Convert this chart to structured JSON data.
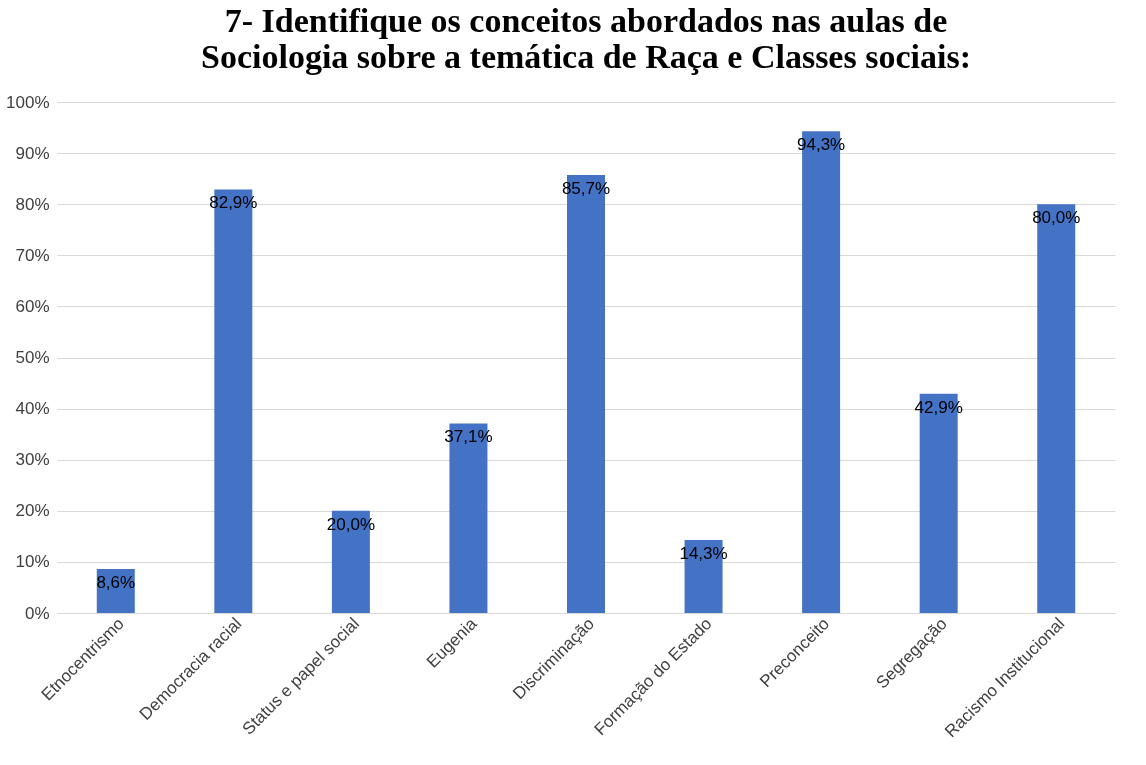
{
  "chart_data": {
    "type": "bar",
    "title": "7- Identifique os conceitos abordados nas aulas de\nSociologia sobre a temática de Raça e Classes sociais:",
    "categories": [
      "Etnocentrismo",
      "Democracia racial",
      "Status e papel social",
      "Eugenia",
      "Discriminação",
      "Formação do Estado",
      "Preconceito",
      "Segregação",
      "Racismo Institucional"
    ],
    "values": [
      8.6,
      82.9,
      20.0,
      37.1,
      85.7,
      14.3,
      94.3,
      42.9,
      80.0
    ],
    "value_labels": [
      "8,6%",
      "82,9%",
      "20,0%",
      "37,1%",
      "85,7%",
      "14,3%",
      "94,3%",
      "42,9%",
      "80,0%"
    ],
    "color": "#4472c4",
    "ylim": [
      0,
      100
    ],
    "yticks": [
      {
        "value": 0,
        "label": "0%"
      },
      {
        "value": 10,
        "label": "10%"
      },
      {
        "value": 20,
        "label": "20%"
      },
      {
        "value": 30,
        "label": "30%"
      },
      {
        "value": 40,
        "label": "40%"
      },
      {
        "value": 50,
        "label": "50%"
      },
      {
        "value": 60,
        "label": "60%"
      },
      {
        "value": 70,
        "label": "70%"
      },
      {
        "value": 80,
        "label": "80%"
      },
      {
        "value": 90,
        "label": "90%"
      },
      {
        "value": 100,
        "label": "100%"
      }
    ],
    "grid": "y"
  }
}
